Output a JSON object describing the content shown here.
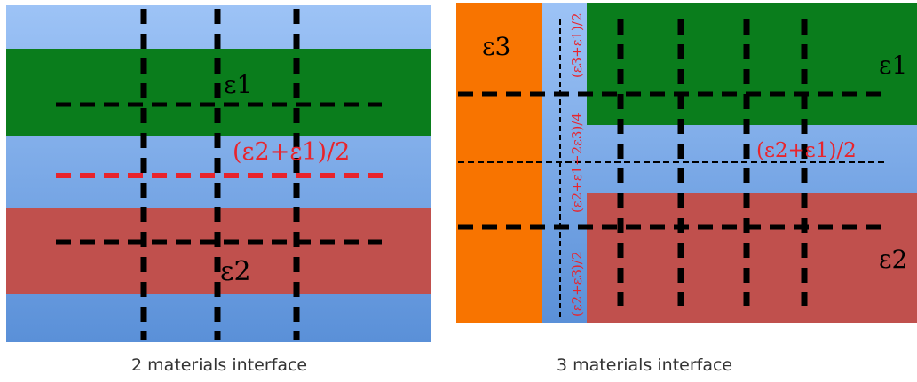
{
  "colors": {
    "background_light": "#9dc3f6",
    "background_dark": "#5a90d8",
    "green": "#0a7d1c",
    "red": "#c0504d",
    "orange": "#f87400",
    "annotation_red": "#e8242c",
    "dash_black": "#000000"
  },
  "panel_left": {
    "caption": "2 materials interface",
    "label_e1": "ε1",
    "label_e2": "ε2",
    "label_mid": "(ε2+ε1)/2"
  },
  "panel_right": {
    "caption": "3 materials interface",
    "label_e1": "ε1",
    "label_e2": "ε2",
    "label_e3": "ε3",
    "label_mid": "(ε2+ε1)/2",
    "label_v_top": "(ε3+ε1)/2",
    "label_v_mid": "(ε2+ε1+2ε3)/4",
    "label_v_bot": "(ε2+ε3)/2"
  }
}
